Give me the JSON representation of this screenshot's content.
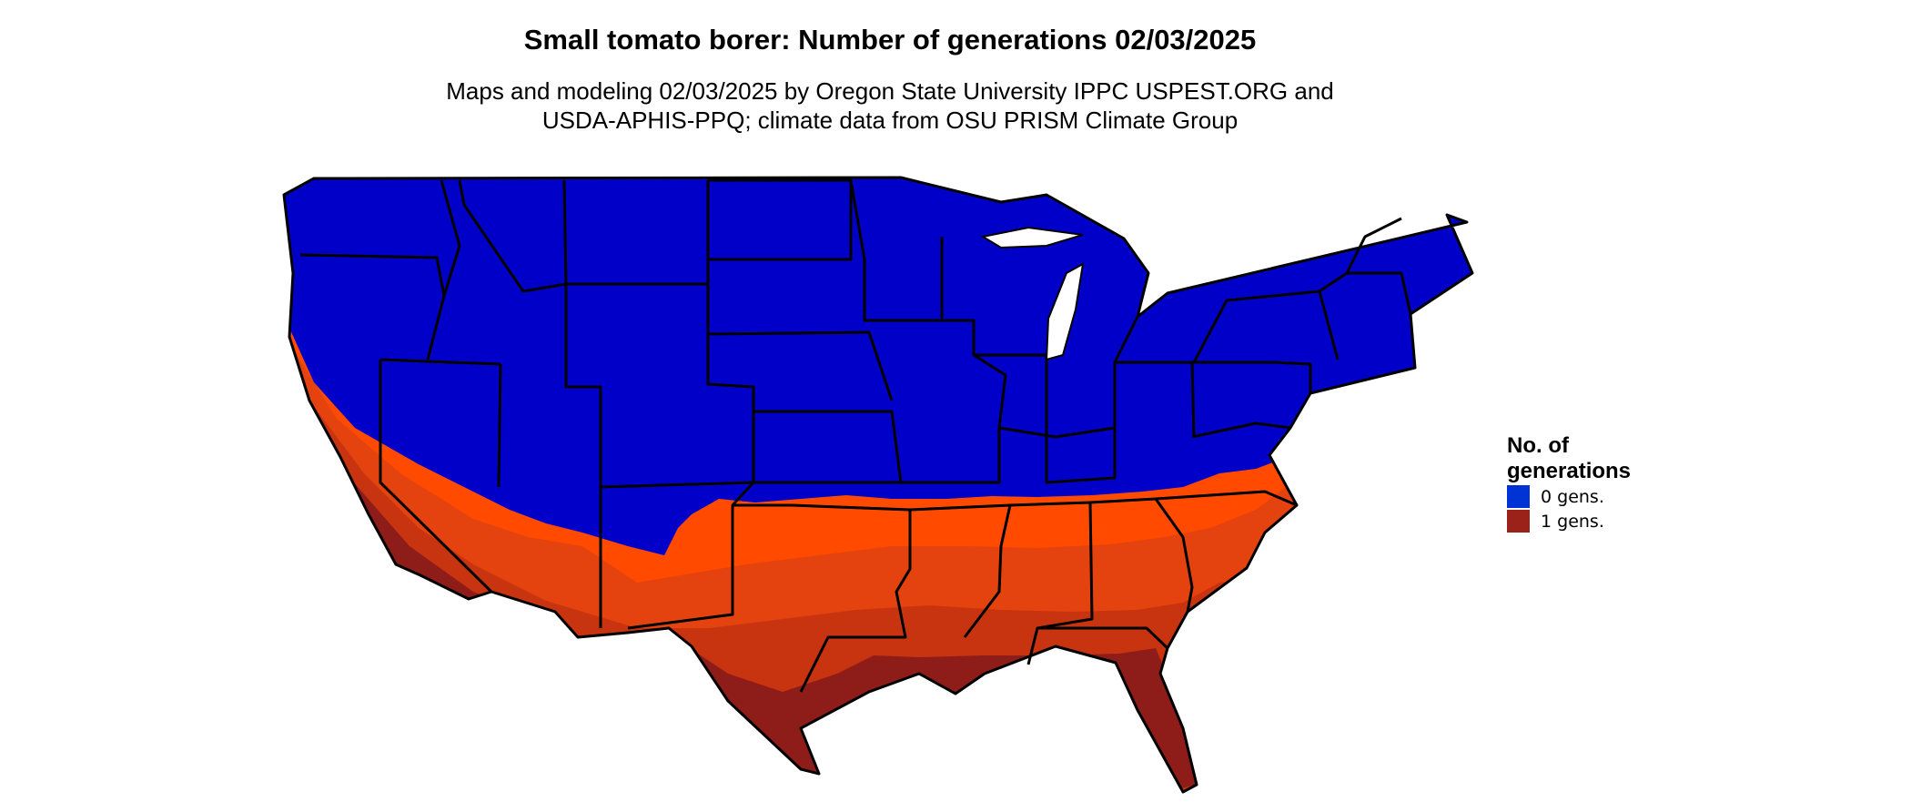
{
  "title": "Small tomato borer: Number of generations 02/03/2025",
  "subtitle_lines": [
    "Maps and modeling 02/03/2025 by Oregon State University IPPC USPEST.ORG and",
    "USDA-APHIS-PPQ; climate data from OSU PRISM Climate Group"
  ],
  "legend": {
    "title_lines": [
      "No. of",
      "generations"
    ],
    "items": [
      {
        "label": "0 gens.",
        "color": "#0033d6"
      },
      {
        "label": "1 gens.",
        "color": "#9a2218"
      }
    ]
  },
  "map_colors": {
    "zero_generations_fill": "#0000c8",
    "south_band_light": "#ff4a00",
    "south_band_mid": "#e4420e",
    "south_band_dark": "#c8340f",
    "south_band_darkest": "#8e1d1a",
    "state_borders": "#000000"
  }
}
